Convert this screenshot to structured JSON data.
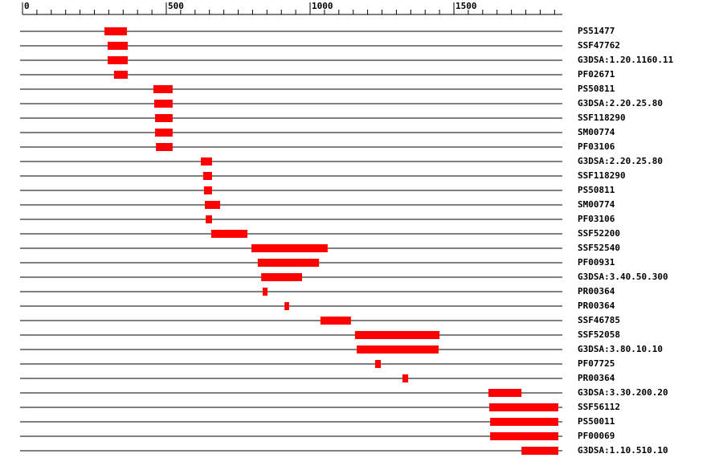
{
  "chart_data": {
    "type": "range",
    "categories": [
      "PS51477",
      "SSF47762",
      "G3DSA:1.20.1160.11",
      "PF02671",
      "PS50811",
      "G3DSA:2.20.25.80",
      "SSF118290",
      "SM00774",
      "PF03106",
      "G3DSA:2.20.25.80",
      "SSF118290",
      "PS50811",
      "SM00774",
      "PF03106",
      "SSF52200",
      "SSF52540",
      "PF00931",
      "G3DSA:3.40.50.300",
      "PR00364",
      "PR00364",
      "SSF46785",
      "SSF52058",
      "G3DSA:3.80.10.10",
      "PF07725",
      "PR00364",
      "G3DSA:3.30.200.20",
      "SSF56112",
      "PS50011",
      "PF00069",
      "G3DSA:1.10.510.10"
    ],
    "starts": [
      285,
      296,
      296,
      318,
      455,
      458,
      461,
      461,
      464,
      620,
      628,
      631,
      634,
      637,
      656,
      796,
      818,
      830,
      835,
      911,
      1036,
      1156,
      1162,
      1226,
      1321,
      1620,
      1623,
      1626,
      1626,
      1735
    ],
    "ends": [
      363,
      366,
      366,
      366,
      522,
      522,
      522,
      522,
      522,
      659,
      659,
      659,
      687,
      659,
      782,
      1061,
      1031,
      972,
      852,
      927,
      1142,
      1450,
      1447,
      1246,
      1341,
      1735,
      1863,
      1863,
      1863,
      1863
    ],
    "color": "#ff0000",
    "xlim": [
      0,
      1877
    ],
    "xticks": [
      0,
      500,
      1000,
      1500
    ],
    "xminorticks": [
      50,
      100,
      150,
      200,
      250,
      300,
      350,
      400,
      450,
      550,
      600,
      650,
      700,
      750,
      800,
      850,
      900,
      950,
      1050,
      1100,
      1150,
      1200,
      1250,
      1300,
      1350,
      1400,
      1450,
      1550,
      1600,
      1650,
      1700,
      1750,
      1800,
      1850
    ]
  }
}
